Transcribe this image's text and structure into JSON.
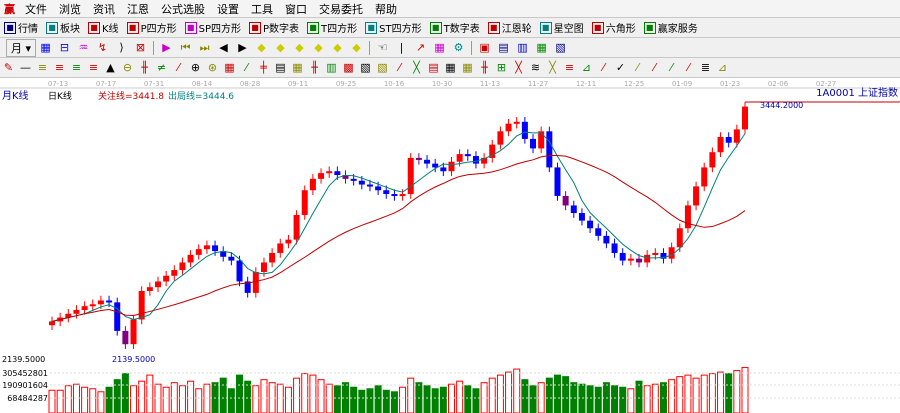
{
  "menu": [
    "文件",
    "浏览",
    "资讯",
    "江恩",
    "公式选股",
    "设置",
    "工具",
    "窗口",
    "交易委托",
    "帮助"
  ],
  "toolbar": [
    {
      "label": "行情",
      "icon": "quote-list-icon",
      "color": "#000080"
    },
    {
      "label": "板块",
      "icon": "sector-icon",
      "color": "#008080"
    },
    {
      "label": "K线",
      "icon": "kline-icon",
      "color": "#c00000"
    },
    {
      "label": "P四方形",
      "icon": "p-square-icon",
      "color": "#c00000"
    },
    {
      "label": "SP四方形",
      "icon": "sp-square-icon",
      "color": "#c000c0"
    },
    {
      "label": "P数字表",
      "icon": "p-table-icon",
      "color": "#c00000"
    },
    {
      "label": "T四方形",
      "icon": "t-square-icon",
      "color": "#008000"
    },
    {
      "label": "ST四方形",
      "icon": "st-square-icon",
      "color": "#008080"
    },
    {
      "label": "T数字表",
      "icon": "t-table-icon",
      "color": "#008000"
    },
    {
      "label": "江恩轮",
      "icon": "gann-wheel-icon",
      "color": "#c00000"
    },
    {
      "label": "星空图",
      "icon": "star-chart-icon",
      "color": "#008080"
    },
    {
      "label": "六角形",
      "icon": "hexagon-icon",
      "color": "#c00000"
    },
    {
      "label": "赢家服务",
      "icon": "dollar-icon",
      "color": "#008000"
    }
  ],
  "period_selector": "月",
  "chart": {
    "period_label": "月K线",
    "sub_label": "日K线",
    "watch_line": "关注线=3441.8",
    "exit_line": "出局线=3444.6",
    "symbol": "1A0001  上证指数",
    "high_label": "3444.2000",
    "low_label": "2139.5000",
    "axis_price": "2139.5000",
    "vol_labels": [
      "305452801",
      "190901604",
      "68484287"
    ],
    "dates": [
      "07-13",
      "07-17",
      "07-31",
      "08-14",
      "08-28",
      "09-11",
      "09-25",
      "10-16",
      "10-30",
      "11-13",
      "11-27",
      "12-11",
      "12-25",
      "01-09",
      "01-23",
      "02-06",
      "02-27"
    ],
    "colors": {
      "up": "#ff0000",
      "down": "#0000ff",
      "special": "#800080",
      "vol_down": "#008000",
      "ma_fast": "#008080",
      "ma_slow": "#c00000"
    }
  },
  "chart_data": {
    "type": "candlestick",
    "closes": [
      2290,
      2310,
      2330,
      2350,
      2370,
      2380,
      2400,
      2390,
      2240,
      2170,
      2300,
      2450,
      2470,
      2500,
      2530,
      2560,
      2600,
      2640,
      2670,
      2690,
      2660,
      2630,
      2610,
      2500,
      2440,
      2550,
      2600,
      2650,
      2700,
      2720,
      2850,
      2980,
      3040,
      3070,
      3080,
      3060,
      3040,
      3030,
      3010,
      3000,
      2980,
      2960,
      2950,
      2960,
      3150,
      3140,
      3120,
      3100,
      3080,
      3130,
      3170,
      3160,
      3120,
      3150,
      3220,
      3290,
      3330,
      3340,
      3250,
      3200,
      3290,
      3100,
      2950,
      2900,
      2860,
      2820,
      2780,
      2740,
      2700,
      2650,
      2610,
      2620,
      2600,
      2640,
      2650,
      2620,
      2680,
      2780,
      2900,
      3000,
      3100,
      3180,
      3260,
      3230,
      3300,
      3420
    ],
    "volumes": [
      150,
      150,
      180,
      190,
      170,
      160,
      140,
      170,
      220,
      260,
      180,
      210,
      250,
      190,
      170,
      200,
      180,
      210,
      160,
      190,
      200,
      230,
      160,
      250,
      210,
      180,
      220,
      200,
      190,
      170,
      230,
      260,
      250,
      220,
      190,
      180,
      200,
      170,
      150,
      160,
      180,
      150,
      140,
      170,
      230,
      200,
      180,
      160,
      170,
      190,
      210,
      180,
      160,
      200,
      230,
      250,
      270,
      290,
      220,
      180,
      200,
      230,
      250,
      240,
      200,
      190,
      180,
      170,
      200,
      180,
      170,
      160,
      210,
      180,
      190,
      200,
      220,
      240,
      250,
      230,
      250,
      260,
      270,
      260,
      280,
      300
    ],
    "ylim": [
      2139.5,
      3444.2
    ]
  }
}
